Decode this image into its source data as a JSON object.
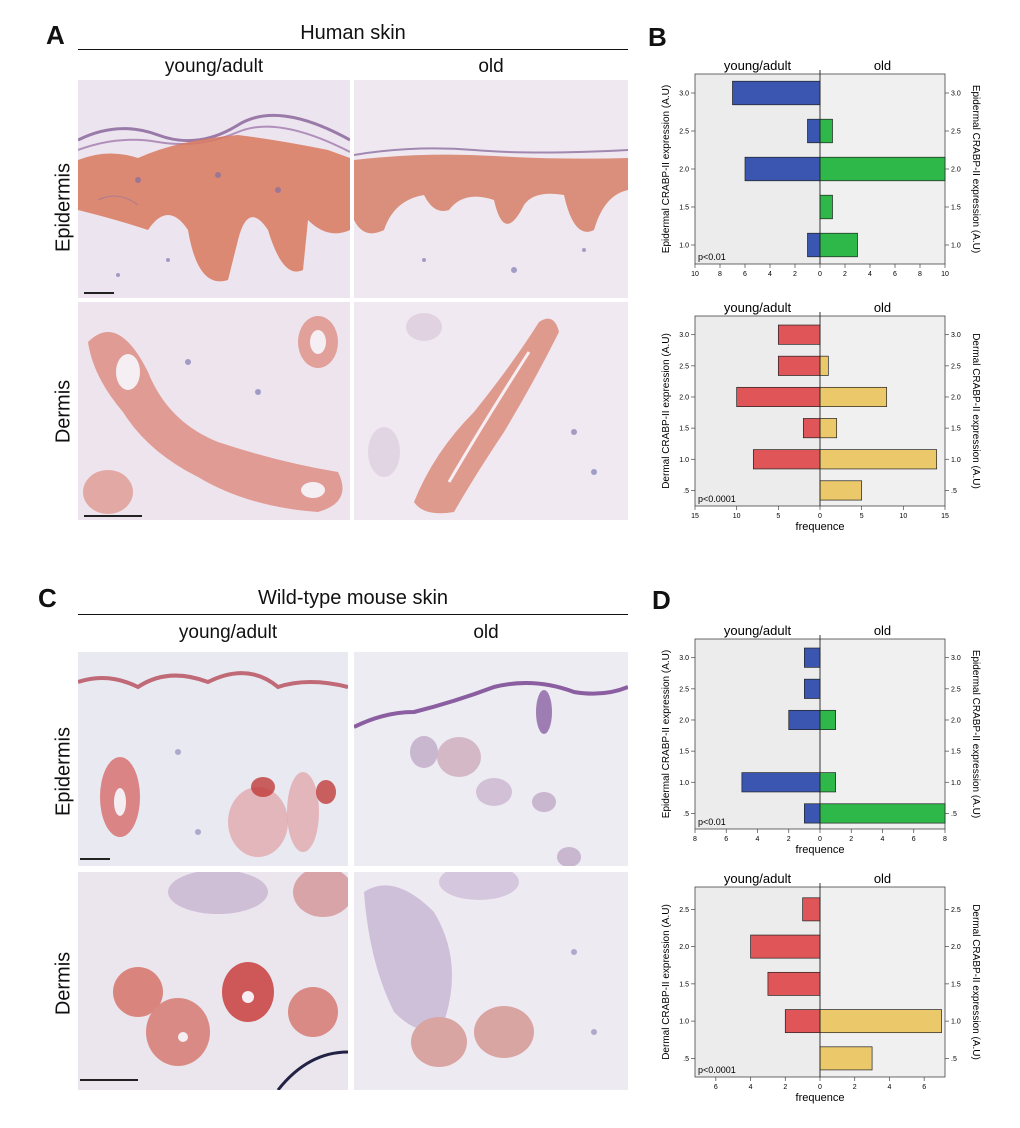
{
  "panels": {
    "A": {
      "letter": "A",
      "title": "Human skin",
      "columns": [
        "young/adult",
        "old"
      ],
      "rows": [
        "Epidermis",
        "Dermis"
      ]
    },
    "B": {
      "letter": "B"
    },
    "C": {
      "letter": "C",
      "title": "Wild-type mouse skin",
      "columns": [
        "young/adult",
        "old"
      ],
      "rows": [
        "Epidermis",
        "Dermis"
      ]
    },
    "D": {
      "letter": "D"
    }
  },
  "colors": {
    "epidermal_young": "#3a56b0",
    "epidermal_old": "#2fb84a",
    "dermal_young": "#e05558",
    "dermal_old": "#ebc96a",
    "plot_bg_right": "#f0f0f0"
  },
  "chart_data": [
    {
      "id": "B-top",
      "type": "bar",
      "orientation": "horizontal-pyramid",
      "left_title": "young/adult",
      "right_title": "old",
      "ylabel": "Epidermal CRABP-II expression (A.U)",
      "categories": [
        "1.0",
        "1.5",
        "2.0",
        "2.5",
        "3.0"
      ],
      "category_values": [
        1.0,
        1.5,
        2.0,
        2.5,
        3.0
      ],
      "series": [
        {
          "name": "young/adult",
          "values": [
            1,
            0,
            6,
            1,
            7
          ]
        },
        {
          "name": "old",
          "values": [
            3,
            1,
            10,
            1,
            0
          ]
        }
      ],
      "xticks": [
        "10",
        "8",
        "6",
        "4",
        "2",
        "0",
        "2",
        "4",
        "6",
        "8",
        "10"
      ],
      "xtick_values": [
        -10,
        -8,
        -6,
        -4,
        -2,
        0,
        2,
        4,
        6,
        8,
        10
      ],
      "xlim": [
        -10,
        10
      ],
      "ylim": [
        0.75,
        3.25
      ],
      "xlabel": "",
      "annotation": "p<0.01"
    },
    {
      "id": "B-bottom",
      "type": "bar",
      "orientation": "horizontal-pyramid",
      "left_title": "young/adult",
      "right_title": "old",
      "ylabel": "Dermal CRABP-II expression (A.U)",
      "categories": [
        ".5",
        "1.0",
        "1.5",
        "2.0",
        "2.5",
        "3.0"
      ],
      "category_values": [
        0.5,
        1.0,
        1.5,
        2.0,
        2.5,
        3.0
      ],
      "series": [
        {
          "name": "young/adult",
          "values": [
            0,
            8,
            2,
            10,
            5,
            5
          ]
        },
        {
          "name": "old",
          "values": [
            5,
            14,
            2,
            8,
            1,
            0
          ]
        }
      ],
      "xticks": [
        "15",
        "10",
        "5",
        "0",
        "5",
        "10",
        "15"
      ],
      "xtick_values": [
        -15,
        -10,
        -5,
        0,
        5,
        10,
        15
      ],
      "xlim": [
        -15,
        15
      ],
      "ylim": [
        0.25,
        3.3
      ],
      "xlabel": "frequence",
      "annotation": "p<0.0001"
    },
    {
      "id": "D-top",
      "type": "bar",
      "orientation": "horizontal-pyramid",
      "left_title": "young/adult",
      "right_title": "old",
      "ylabel": "Epidermal CRABP-II expression (A.U)",
      "categories": [
        ".5",
        "1.0",
        "1.5",
        "2.0",
        "2.5",
        "3.0"
      ],
      "category_values": [
        0.5,
        1.0,
        1.5,
        2.0,
        2.5,
        3.0
      ],
      "series": [
        {
          "name": "young/adult",
          "values": [
            1,
            5,
            0,
            2,
            1,
            1
          ]
        },
        {
          "name": "old",
          "values": [
            8,
            1,
            0,
            1,
            0,
            0
          ]
        }
      ],
      "xticks": [
        "8",
        "6",
        "4",
        "2",
        "0",
        "2",
        "4",
        "6",
        "8"
      ],
      "xtick_values": [
        -8,
        -6,
        -4,
        -2,
        0,
        2,
        4,
        6,
        8
      ],
      "xlim": [
        -8,
        8
      ],
      "ylim": [
        0.25,
        3.3
      ],
      "xlabel": "frequence",
      "annotation": "p<0.01"
    },
    {
      "id": "D-bottom",
      "type": "bar",
      "orientation": "horizontal-pyramid",
      "left_title": "young/adult",
      "right_title": "old",
      "ylabel": "Dermal CRABP-II expression (A.U)",
      "categories": [
        ".5",
        "1.0",
        "1.5",
        "2.0",
        "2.5"
      ],
      "category_values": [
        0.5,
        1.0,
        1.5,
        2.0,
        2.5
      ],
      "series": [
        {
          "name": "young/adult",
          "values": [
            0,
            2,
            3,
            4,
            1
          ]
        },
        {
          "name": "old",
          "values": [
            3,
            7,
            0,
            0,
            0
          ]
        }
      ],
      "xticks": [
        "6",
        "4",
        "2",
        "0",
        "2",
        "4",
        "6"
      ],
      "xtick_values": [
        -6,
        -4,
        -2,
        0,
        2,
        4,
        6
      ],
      "xlim": [
        -7.2,
        7.2
      ],
      "ylim": [
        0.25,
        2.8
      ],
      "xlabel": "frequence",
      "annotation": "p<0.0001"
    }
  ]
}
